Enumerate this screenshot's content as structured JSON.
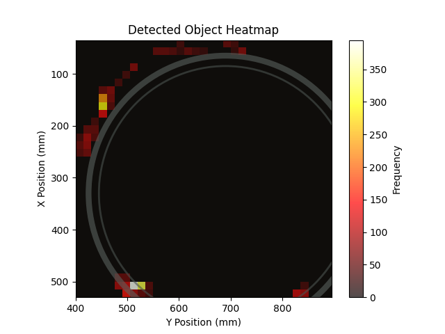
{
  "chart_data": {
    "type": "heatmap",
    "title": "Detected Object Heatmap",
    "x_label": "Y Position (mm)",
    "y_label": "X Position (mm)",
    "xlim": [
      400,
      895
    ],
    "ylim": [
      530,
      35
    ],
    "xticks": [
      400,
      500,
      600,
      700,
      800
    ],
    "yticks": [
      100,
      200,
      300,
      400,
      500
    ],
    "bin_size": 15,
    "colorbar": {
      "label": "Frequency",
      "range": [
        0,
        395
      ],
      "ticks": [
        0,
        50,
        100,
        150,
        200,
        250,
        300,
        350
      ]
    },
    "cells": [
      {
        "x": 602.5,
        "y": 42.5,
        "value": 40
      },
      {
        "x": 692.5,
        "y": 42.5,
        "value": 60
      },
      {
        "x": 707.5,
        "y": 42.5,
        "value": 40
      },
      {
        "x": 557.5,
        "y": 57.5,
        "value": 60
      },
      {
        "x": 572.5,
        "y": 57.5,
        "value": 60
      },
      {
        "x": 587.5,
        "y": 57.5,
        "value": 50
      },
      {
        "x": 602.5,
        "y": 57.5,
        "value": 30
      },
      {
        "x": 617.5,
        "y": 57.5,
        "value": 60
      },
      {
        "x": 632.5,
        "y": 57.5,
        "value": 40
      },
      {
        "x": 647.5,
        "y": 57.5,
        "value": 30
      },
      {
        "x": 707.5,
        "y": 57.5,
        "value": 30
      },
      {
        "x": 722.5,
        "y": 57.5,
        "value": 80
      },
      {
        "x": 512.5,
        "y": 87.5,
        "value": 80
      },
      {
        "x": 497.5,
        "y": 102.5,
        "value": 40
      },
      {
        "x": 482.5,
        "y": 117.5,
        "value": 40
      },
      {
        "x": 452.5,
        "y": 132.5,
        "value": 60
      },
      {
        "x": 467.5,
        "y": 132.5,
        "value": 80
      },
      {
        "x": 452.5,
        "y": 147.5,
        "value": 230
      },
      {
        "x": 467.5,
        "y": 147.5,
        "value": 70
      },
      {
        "x": 452.5,
        "y": 162.5,
        "value": 290
      },
      {
        "x": 467.5,
        "y": 162.5,
        "value": 50
      },
      {
        "x": 452.5,
        "y": 177.5,
        "value": 130
      },
      {
        "x": 437.5,
        "y": 192.5,
        "value": 40
      },
      {
        "x": 422.5,
        "y": 207.5,
        "value": 60
      },
      {
        "x": 437.5,
        "y": 207.5,
        "value": 60
      },
      {
        "x": 407.5,
        "y": 222.5,
        "value": 40
      },
      {
        "x": 422.5,
        "y": 222.5,
        "value": 100
      },
      {
        "x": 437.5,
        "y": 222.5,
        "value": 50
      },
      {
        "x": 407.5,
        "y": 237.5,
        "value": 60
      },
      {
        "x": 422.5,
        "y": 237.5,
        "value": 90
      },
      {
        "x": 407.5,
        "y": 252.5,
        "value": 50
      },
      {
        "x": 422.5,
        "y": 252.5,
        "value": 70
      },
      {
        "x": 482.5,
        "y": 492.5,
        "value": 60
      },
      {
        "x": 497.5,
        "y": 492.5,
        "value": 60
      },
      {
        "x": 482.5,
        "y": 507.5,
        "value": 100
      },
      {
        "x": 497.5,
        "y": 507.5,
        "value": 120
      },
      {
        "x": 512.5,
        "y": 507.5,
        "value": 390
      },
      {
        "x": 527.5,
        "y": 507.5,
        "value": 320
      },
      {
        "x": 542.5,
        "y": 507.5,
        "value": 50
      },
      {
        "x": 497.5,
        "y": 522.5,
        "value": 150
      },
      {
        "x": 512.5,
        "y": 522.5,
        "value": 100
      },
      {
        "x": 527.5,
        "y": 522.5,
        "value": 60
      },
      {
        "x": 542.5,
        "y": 522.5,
        "value": 40
      },
      {
        "x": 842.5,
        "y": 507.5,
        "value": 40
      },
      {
        "x": 827.5,
        "y": 522.5,
        "value": 120
      },
      {
        "x": 842.5,
        "y": 522.5,
        "value": 100
      }
    ]
  }
}
